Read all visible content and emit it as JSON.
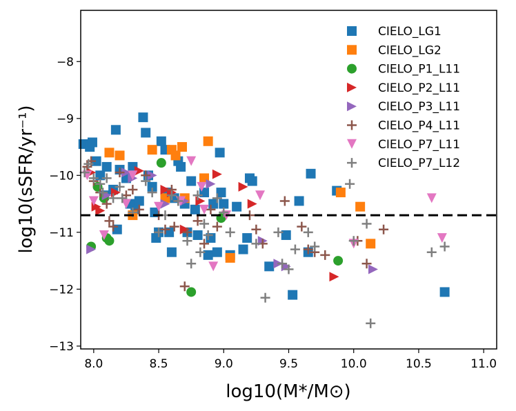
{
  "chart_data": {
    "type": "scatter",
    "xlabel": "log10(M*/M⊙)",
    "ylabel": "log10(sSFR/yr⁻¹)",
    "xlim": [
      7.9,
      11.1
    ],
    "ylim": [
      -13.05,
      -7.1
    ],
    "x_ticks": [
      8.0,
      8.5,
      9.0,
      9.5,
      10.0,
      10.5,
      11.0
    ],
    "x_tick_labels": [
      "8.0",
      "8.5",
      "9.0",
      "9.5",
      "10.0",
      "10.5",
      "11.0"
    ],
    "y_ticks": [
      -13,
      -12,
      -11,
      -10,
      -9,
      -8
    ],
    "y_tick_labels": [
      "−13",
      "−12",
      "−11",
      "−10",
      "−9",
      "−8"
    ],
    "threshold_line": {
      "y": -10.7,
      "style": "dashed",
      "color": "#000000"
    },
    "legend": {
      "placement": "top-right"
    },
    "series": [
      {
        "name": "CIELO_LG1",
        "marker": "square",
        "color": "#1f77b4",
        "points": [
          [
            7.92,
            -9.45
          ],
          [
            7.97,
            -9.5
          ],
          [
            7.99,
            -9.42
          ],
          [
            8.02,
            -9.75
          ],
          [
            8.05,
            -10.0
          ],
          [
            8.08,
            -10.35
          ],
          [
            8.1,
            -9.85
          ],
          [
            8.15,
            -10.25
          ],
          [
            8.17,
            -9.2
          ],
          [
            8.18,
            -10.95
          ],
          [
            8.2,
            -9.9
          ],
          [
            8.25,
            -10.05
          ],
          [
            8.28,
            -10.5
          ],
          [
            8.3,
            -9.85
          ],
          [
            8.32,
            -10.6
          ],
          [
            8.35,
            -10.45
          ],
          [
            8.38,
            -8.98
          ],
          [
            8.4,
            -9.25
          ],
          [
            8.42,
            -10.0
          ],
          [
            8.45,
            -10.2
          ],
          [
            8.47,
            -10.65
          ],
          [
            8.48,
            -11.1
          ],
          [
            8.5,
            -11.0
          ],
          [
            8.52,
            -9.4
          ],
          [
            8.55,
            -9.55
          ],
          [
            8.57,
            -10.3
          ],
          [
            8.58,
            -11.0
          ],
          [
            8.6,
            -11.35
          ],
          [
            8.62,
            -10.4
          ],
          [
            8.65,
            -9.75
          ],
          [
            8.67,
            -9.85
          ],
          [
            8.7,
            -10.5
          ],
          [
            8.72,
            -11.0
          ],
          [
            8.75,
            -10.1
          ],
          [
            8.78,
            -10.6
          ],
          [
            8.8,
            -11.05
          ],
          [
            8.85,
            -10.3
          ],
          [
            8.88,
            -11.4
          ],
          [
            8.9,
            -11.1
          ],
          [
            8.92,
            -10.5
          ],
          [
            8.95,
            -11.35
          ],
          [
            8.97,
            -9.6
          ],
          [
            8.98,
            -10.3
          ],
          [
            9.0,
            -10.5
          ],
          [
            9.05,
            -11.4
          ],
          [
            9.1,
            -10.55
          ],
          [
            9.15,
            -11.3
          ],
          [
            9.18,
            -11.1
          ],
          [
            9.2,
            -10.05
          ],
          [
            9.22,
            -10.1
          ],
          [
            9.35,
            -11.6
          ],
          [
            9.48,
            -11.05
          ],
          [
            9.53,
            -12.1
          ],
          [
            9.58,
            -10.45
          ],
          [
            9.65,
            -11.35
          ],
          [
            9.67,
            -9.97
          ],
          [
            9.87,
            -10.27
          ],
          [
            10.7,
            -12.05
          ]
        ]
      },
      {
        "name": "CIELO_LG2",
        "marker": "square",
        "color": "#ff7f0e",
        "points": [
          [
            8.12,
            -9.6
          ],
          [
            8.2,
            -9.65
          ],
          [
            8.3,
            -10.7
          ],
          [
            8.45,
            -9.55
          ],
          [
            8.55,
            -10.4
          ],
          [
            8.6,
            -9.55
          ],
          [
            8.63,
            -9.65
          ],
          [
            8.68,
            -9.5
          ],
          [
            8.7,
            -10.4
          ],
          [
            8.85,
            -10.05
          ],
          [
            8.88,
            -9.4
          ],
          [
            9.05,
            -11.45
          ],
          [
            9.9,
            -10.3
          ],
          [
            10.05,
            -10.55
          ],
          [
            10.13,
            -11.2
          ]
        ]
      },
      {
        "name": "CIELO_P1_L11",
        "marker": "circle",
        "color": "#2ca02c",
        "points": [
          [
            7.98,
            -11.25
          ],
          [
            8.03,
            -10.2
          ],
          [
            8.08,
            -10.4
          ],
          [
            8.1,
            -11.1
          ],
          [
            8.12,
            -11.15
          ],
          [
            8.52,
            -9.78
          ],
          [
            8.75,
            -12.05
          ],
          [
            8.98,
            -10.75
          ],
          [
            9.88,
            -11.5
          ]
        ]
      },
      {
        "name": "CIELO_P2_L11",
        "marker": "triangle-right",
        "color": "#d62728",
        "points": [
          [
            7.98,
            -9.95
          ],
          [
            8.02,
            -10.55
          ],
          [
            8.05,
            -10.62
          ],
          [
            8.17,
            -10.3
          ],
          [
            8.35,
            -9.92
          ],
          [
            8.55,
            -10.25
          ],
          [
            8.6,
            -10.3
          ],
          [
            8.7,
            -10.95
          ],
          [
            8.82,
            -10.45
          ],
          [
            8.95,
            -9.98
          ],
          [
            9.15,
            -10.2
          ],
          [
            9.22,
            -10.5
          ],
          [
            9.85,
            -11.78
          ]
        ]
      },
      {
        "name": "CIELO_P3_L11",
        "marker": "triangle-right",
        "color": "#9467bd",
        "points": [
          [
            7.98,
            -11.3
          ],
          [
            8.1,
            -10.35
          ],
          [
            8.25,
            -9.95
          ],
          [
            8.3,
            -10.05
          ],
          [
            8.45,
            -10.0
          ],
          [
            8.55,
            -10.5
          ],
          [
            8.7,
            -10.45
          ],
          [
            8.9,
            -10.15
          ],
          [
            9.3,
            -11.15
          ],
          [
            9.42,
            -11.55
          ],
          [
            9.48,
            -11.6
          ],
          [
            10.15,
            -11.65
          ]
        ]
      },
      {
        "name": "CIELO_P4_L11",
        "marker": "plus",
        "color": "#8c564b",
        "points": [
          [
            7.95,
            -9.85
          ],
          [
            7.98,
            -9.75
          ],
          [
            8.0,
            -10.1
          ],
          [
            8.05,
            -10.3
          ],
          [
            8.1,
            -10.5
          ],
          [
            8.12,
            -10.8
          ],
          [
            8.15,
            -10.9
          ],
          [
            8.2,
            -9.95
          ],
          [
            8.25,
            -10.35
          ],
          [
            8.3,
            -10.25
          ],
          [
            8.35,
            -10.6
          ],
          [
            8.4,
            -10.0
          ],
          [
            8.5,
            -10.7
          ],
          [
            8.55,
            -10.95
          ],
          [
            8.6,
            -10.25
          ],
          [
            8.62,
            -10.9
          ],
          [
            8.65,
            -10.45
          ],
          [
            8.7,
            -11.95
          ],
          [
            8.72,
            -11.0
          ],
          [
            8.8,
            -10.8
          ],
          [
            8.85,
            -11.2
          ],
          [
            8.9,
            -10.6
          ],
          [
            8.95,
            -10.9
          ],
          [
            9.2,
            -10.7
          ],
          [
            9.25,
            -10.95
          ],
          [
            9.3,
            -11.2
          ],
          [
            9.47,
            -10.45
          ],
          [
            9.6,
            -10.9
          ],
          [
            9.65,
            -11.3
          ],
          [
            9.7,
            -11.35
          ],
          [
            9.78,
            -11.4
          ],
          [
            10.03,
            -11.15
          ],
          [
            10.1,
            -11.55
          ],
          [
            10.23,
            -10.95
          ]
        ]
      },
      {
        "name": "CIELO_P7_L11",
        "marker": "triangle-down",
        "color": "#e377c2",
        "points": [
          [
            7.95,
            -10.0
          ],
          [
            8.0,
            -10.45
          ],
          [
            8.08,
            -11.05
          ],
          [
            8.25,
            -10.5
          ],
          [
            8.3,
            -10.0
          ],
          [
            8.5,
            -10.55
          ],
          [
            8.67,
            -10.45
          ],
          [
            8.75,
            -9.75
          ],
          [
            8.83,
            -10.2
          ],
          [
            8.85,
            -10.6
          ],
          [
            8.92,
            -11.6
          ],
          [
            9.02,
            -10.7
          ],
          [
            9.28,
            -10.35
          ],
          [
            10.0,
            -11.2
          ],
          [
            10.6,
            -10.4
          ],
          [
            10.68,
            -11.1
          ]
        ]
      },
      {
        "name": "CIELO_P7_L12",
        "marker": "plus",
        "color": "#7f7f7f",
        "points": [
          [
            7.93,
            -9.95
          ],
          [
            7.96,
            -9.8
          ],
          [
            8.0,
            -10.05
          ],
          [
            8.05,
            -10.15
          ],
          [
            8.07,
            -10.3
          ],
          [
            8.1,
            -10.05
          ],
          [
            8.15,
            -10.4
          ],
          [
            8.2,
            -10.2
          ],
          [
            8.22,
            -10.4
          ],
          [
            8.3,
            -10.65
          ],
          [
            8.4,
            -10.1
          ],
          [
            8.45,
            -10.3
          ],
          [
            8.5,
            -11.0
          ],
          [
            8.55,
            -10.7
          ],
          [
            8.6,
            -10.35
          ],
          [
            8.65,
            -10.45
          ],
          [
            8.72,
            -11.15
          ],
          [
            8.75,
            -11.55
          ],
          [
            8.8,
            -10.35
          ],
          [
            8.82,
            -11.35
          ],
          [
            8.85,
            -10.85
          ],
          [
            8.88,
            -11.05
          ],
          [
            8.95,
            -10.4
          ],
          [
            9.0,
            -10.65
          ],
          [
            9.05,
            -11.0
          ],
          [
            9.25,
            -11.2
          ],
          [
            9.32,
            -12.15
          ],
          [
            9.42,
            -11.0
          ],
          [
            9.45,
            -11.55
          ],
          [
            9.5,
            -11.65
          ],
          [
            9.55,
            -11.3
          ],
          [
            9.65,
            -11.0
          ],
          [
            9.7,
            -11.25
          ],
          [
            9.97,
            -10.15
          ],
          [
            10.0,
            -11.15
          ],
          [
            10.1,
            -10.85
          ],
          [
            10.13,
            -12.6
          ],
          [
            10.6,
            -11.35
          ],
          [
            10.7,
            -11.25
          ]
        ]
      }
    ]
  }
}
